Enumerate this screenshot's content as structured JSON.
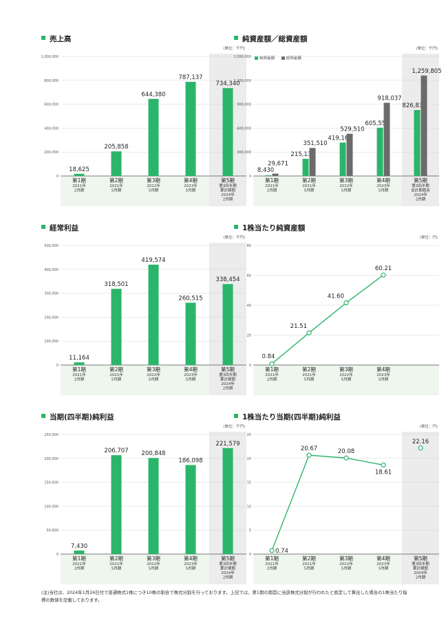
{
  "charts": {
    "sales": {
      "title": "売上高",
      "unit": "(単位：千円)",
      "chart_data": {
        "type": "bar",
        "ylim": [
          0,
          1000000
        ],
        "yticks": [
          "0",
          "200,000",
          "400,000",
          "600,000",
          "800,000",
          "1,000,000"
        ],
        "categories": [
          {
            "label": "第1期",
            "sub": [
              "2021年",
              "2月期"
            ]
          },
          {
            "label": "第2期",
            "sub": [
              "2021年",
              "5月期"
            ]
          },
          {
            "label": "第3期",
            "sub": [
              "2022年",
              "5月期"
            ]
          },
          {
            "label": "第4期",
            "sub": [
              "2023年",
              "5月期"
            ]
          },
          {
            "label": "第5期",
            "sub": [
              "第3四半期",
              "累計期間",
              "2024年",
              "2月期"
            ]
          }
        ],
        "values": [
          18625,
          205858,
          644380,
          787137,
          734340
        ],
        "labels": [
          "18,625",
          "205,858",
          "644,380",
          "787,137",
          "734,340"
        ]
      }
    },
    "assets": {
      "title": "純資産額／総資産額",
      "unit": "(単位：千円)",
      "legend": [
        "純資産額",
        "総資産額"
      ],
      "chart_data": {
        "type": "bar",
        "ylim": [
          0,
          1500000
        ],
        "yticks": [
          "0",
          "300,000",
          "600,000",
          "900,000",
          "1,200,000",
          "1,500,000"
        ],
        "categories": [
          {
            "label": "第1期",
            "sub": [
              "2021年",
              "2月期"
            ]
          },
          {
            "label": "第2期",
            "sub": [
              "2021年",
              "5月期"
            ]
          },
          {
            "label": "第3期",
            "sub": [
              "2022年",
              "5月期"
            ]
          },
          {
            "label": "第4期",
            "sub": [
              "2023年",
              "5月期"
            ]
          },
          {
            "label": "第5期",
            "sub": [
              "第3四半期",
              "会計期間末",
              "2024年",
              "2月期"
            ]
          }
        ],
        "series": [
          {
            "name": "純資産額",
            "values": [
              8430,
              215137,
              419161,
              605554,
              826833
            ],
            "labels": [
              "8,430",
              "215,137",
              "419,161",
              "605,554",
              "826,833"
            ]
          },
          {
            "name": "総資産額",
            "values": [
              29671,
              351510,
              529510,
              918037,
              1259805
            ],
            "labels": [
              "29,671",
              "351,510",
              "529,510",
              "918,037",
              "1,259,805"
            ]
          }
        ]
      }
    },
    "ordinary": {
      "title": "経常利益",
      "unit": "(単位：千円)",
      "chart_data": {
        "type": "bar",
        "ylim": [
          0,
          500000
        ],
        "yticks": [
          "0",
          "100,000",
          "200,000",
          "300,000",
          "400,000",
          "500,000"
        ],
        "categories": [
          {
            "label": "第1期",
            "sub": [
              "2021年",
              "2月期"
            ]
          },
          {
            "label": "第2期",
            "sub": [
              "2021年",
              "5月期"
            ]
          },
          {
            "label": "第3期",
            "sub": [
              "2022年",
              "5月期"
            ]
          },
          {
            "label": "第4期",
            "sub": [
              "2023年",
              "5月期"
            ]
          },
          {
            "label": "第5期",
            "sub": [
              "第3四半期",
              "累計期間",
              "2024年",
              "2月期"
            ]
          }
        ],
        "values": [
          11164,
          318501,
          419574,
          260515,
          338454
        ],
        "labels": [
          "11,164",
          "318,501",
          "419,574",
          "260,515",
          "338,454"
        ]
      }
    },
    "bps": {
      "title": "1株当たり純資産額",
      "unit": "(単位：円)",
      "chart_data": {
        "type": "line",
        "ylim": [
          0,
          80
        ],
        "yticks": [
          "0",
          "20",
          "40",
          "60",
          "80"
        ],
        "categories": [
          {
            "label": "第1期",
            "sub": [
              "2021年",
              "2月期"
            ]
          },
          {
            "label": "第2期",
            "sub": [
              "2021年",
              "5月期"
            ]
          },
          {
            "label": "第3期",
            "sub": [
              "2022年",
              "5月期"
            ]
          },
          {
            "label": "第4期",
            "sub": [
              "2023年",
              "5月期"
            ]
          }
        ],
        "values": [
          0.84,
          21.51,
          41.6,
          60.21
        ],
        "labels": [
          "0.84",
          "21.51",
          "41.60",
          "60.21"
        ]
      }
    },
    "netincome": {
      "title": "当期(四半期)純利益",
      "unit": "(単位：千円)",
      "chart_data": {
        "type": "bar",
        "ylim": [
          0,
          250000
        ],
        "yticks": [
          "0",
          "50,000",
          "100,000",
          "150,000",
          "200,000",
          "250,000"
        ],
        "categories": [
          {
            "label": "第1期",
            "sub": [
              "2021年",
              "2月期"
            ]
          },
          {
            "label": "第2期",
            "sub": [
              "2021年",
              "5月期"
            ]
          },
          {
            "label": "第3期",
            "sub": [
              "2022年",
              "5月期"
            ]
          },
          {
            "label": "第4期",
            "sub": [
              "2023年",
              "5月期"
            ]
          },
          {
            "label": "第5期",
            "sub": [
              "第3四半期",
              "累計期間",
              "2024年",
              "2月期"
            ]
          }
        ],
        "values": [
          7430,
          206707,
          200848,
          186098,
          221579
        ],
        "labels": [
          "7,430",
          "206,707",
          "200,848",
          "186,098",
          "221,579"
        ]
      }
    },
    "eps": {
      "title": "1株当たり当期(四半期)純利益",
      "unit": "(単位：円)",
      "chart_data": {
        "type": "line",
        "ylim": [
          0,
          25
        ],
        "yticks": [
          "0",
          "5",
          "10",
          "15",
          "20",
          "25"
        ],
        "categories": [
          {
            "label": "第1期",
            "sub": [
              "2021年",
              "2月期"
            ]
          },
          {
            "label": "第2期",
            "sub": [
              "2021年",
              "5月期"
            ]
          },
          {
            "label": "第3期",
            "sub": [
              "2022年",
              "5月期"
            ]
          },
          {
            "label": "第4期",
            "sub": [
              "2023年",
              "5月期"
            ]
          },
          {
            "label": "第5期",
            "sub": [
              "第3四半期",
              "累計期間",
              "2024年",
              "2月期"
            ]
          }
        ],
        "values": [
          0.74,
          20.67,
          20.08,
          18.61,
          22.16
        ],
        "labels": [
          "0.74",
          "20.67",
          "20.08",
          "18.61",
          "22.16"
        ],
        "connected": [
          true,
          true,
          true,
          true,
          false
        ]
      }
    }
  },
  "colors": {
    "green": "#2bb56a",
    "gray": "#6b6b6b",
    "axisbg": "#eef6ee",
    "highlight": "#ececec"
  },
  "note": "(注)当社は、2024年1月26日付で普通株式1株につき10株の割合で株式分割を行っております。上記では、第1期の期首に当該株式分割が行われたと仮定して算出した場合の1株当たり指標の数値を記載しております。"
}
